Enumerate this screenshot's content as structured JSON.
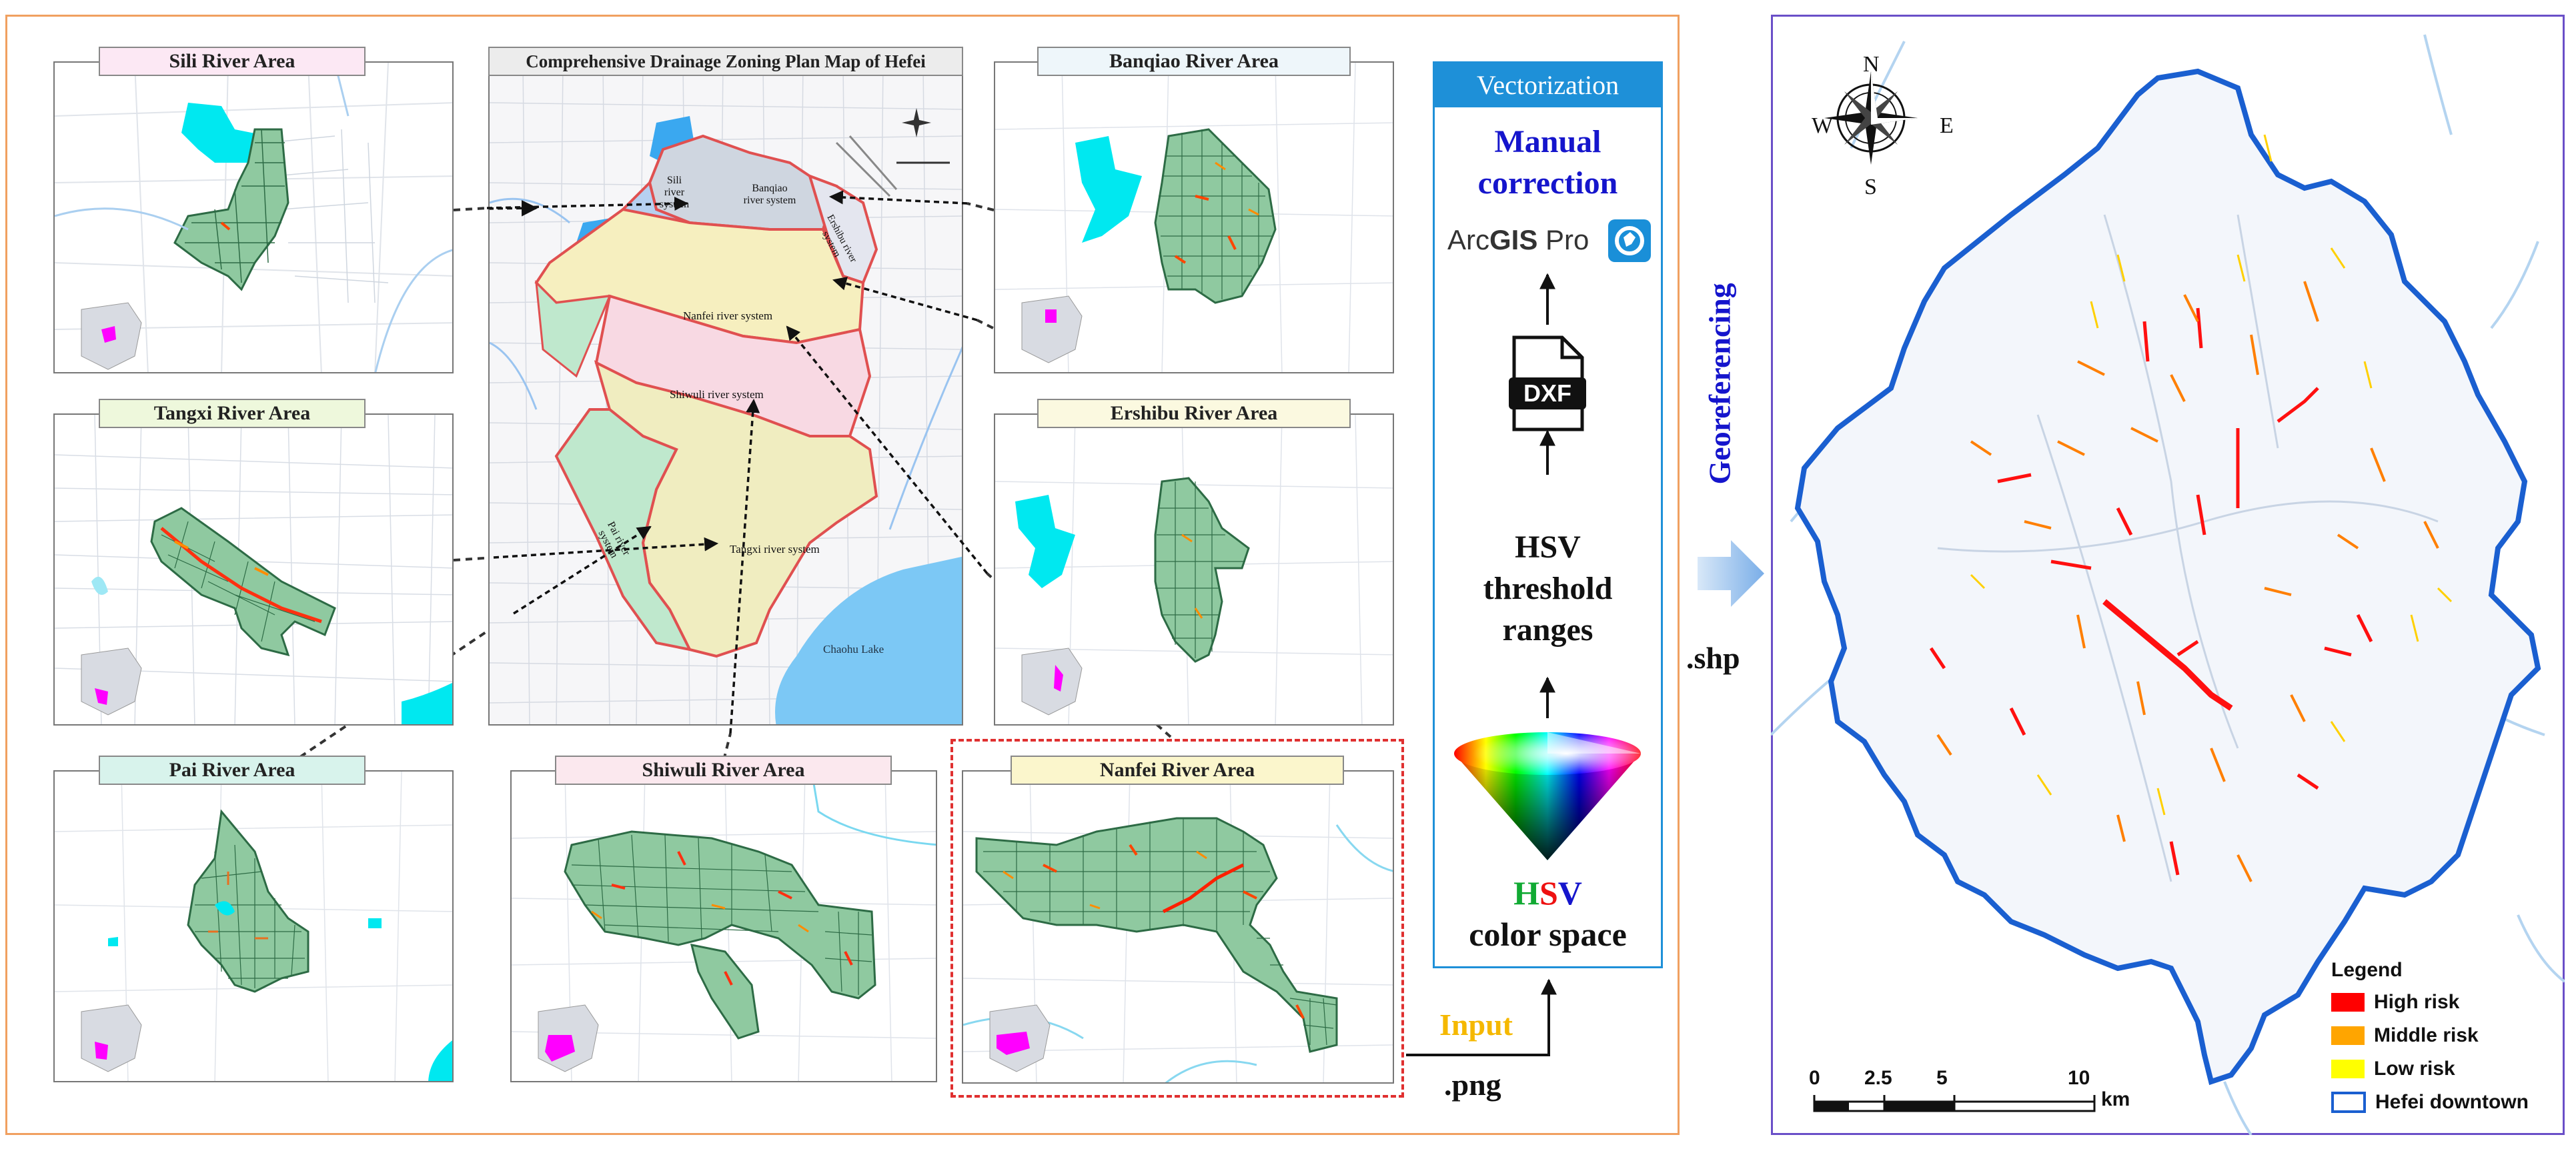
{
  "panels": {
    "sili": "Sili River Area",
    "tangxi": "Tangxi River Area",
    "pai": "Pai River Area",
    "shiwuli": "Shiwuli River Area",
    "nanfei": "Nanfei River Area",
    "banqiao": "Banqiao River Area",
    "ershibu": "Ershibu River Area"
  },
  "central_map": {
    "title": "Comprehensive Drainage Zoning Plan Map of Hefei",
    "systems": {
      "sili_1": "Sili",
      "sili_2": "river",
      "sili_3": "system",
      "banqiao_1": "Banqiao",
      "banqiao_2": "river system",
      "ershibu_1": "Ershibu river",
      "ershibu_2": "system",
      "nanfei": "Nanfei river system",
      "shiwuli": "Shiwuli river system",
      "pai_1": "Pai river",
      "pai_2": "system",
      "tangxi": "Tangxi river system"
    },
    "lake": "Chaohu Lake"
  },
  "process": {
    "header": "Vectorization",
    "manual_1": "Manual",
    "manual_2": "correction",
    "arcgis_arc": "Arc",
    "arcgis_gis": "GIS",
    "arcgis_pro": " Pro",
    "dxf": "DXF",
    "hsv_1": "HSV",
    "hsv_2": "threshold",
    "hsv_3": "ranges",
    "hsv_h": "H",
    "hsv_s": "S",
    "hsv_v": "V",
    "color_space": "color space",
    "input": "Input",
    "png": ".png",
    "shp": ".shp",
    "georef": "Georeferencing"
  },
  "result_map": {
    "compass": {
      "n": "N",
      "s": "S",
      "e": "E",
      "w": "W"
    },
    "legend": {
      "title": "Legend",
      "items": [
        {
          "label": "High risk",
          "color": "#ff0000"
        },
        {
          "label": "Middle risk",
          "color": "#ffa500"
        },
        {
          "label": "Low risk",
          "color": "#ffff00"
        },
        {
          "label": "Hefei downtown",
          "color": "#1a5fd0"
        }
      ]
    },
    "scale": {
      "ticks": [
        "0",
        "2.5",
        "5",
        "10"
      ],
      "unit": "km"
    }
  },
  "colors": {
    "left_border": "#f0a060",
    "right_border": "#6a4fc8",
    "nanfei_dash": "#e03030",
    "vector_header_bg": "#1e90d8",
    "downtown_outline": "#1a5fd0",
    "grid_fill": "#8fc9a0",
    "water": "#00e8f0"
  }
}
